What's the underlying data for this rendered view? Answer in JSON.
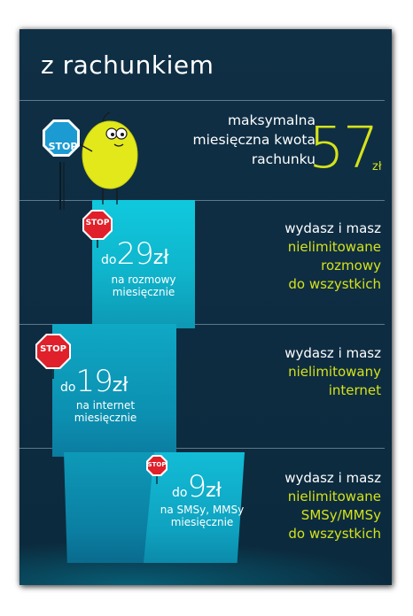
{
  "title": "z rachunkiem",
  "header_section": {
    "label_lines": [
      "maksymalna",
      "miesięczna kwota",
      "rachunku"
    ],
    "amount": "57",
    "currency": "zł",
    "stop_sign_text": "STOP"
  },
  "tiers": [
    {
      "prefix": "do",
      "amount": "29",
      "currency": "zł",
      "caption_lines": [
        "na rozmowy",
        "miesięcznie"
      ],
      "stop_sign_text": "STOP",
      "description_line1": "wydasz i masz",
      "highlight_lines": [
        "nielimitowane",
        "rozmowy",
        "do wszystkich"
      ]
    },
    {
      "prefix": "do",
      "amount": "19",
      "currency": "zł",
      "caption_lines": [
        "na internet",
        "miesięcznie"
      ],
      "stop_sign_text": "STOP",
      "description_line1": "wydasz i masz",
      "highlight_lines": [
        "nielimitowany",
        "internet"
      ]
    },
    {
      "prefix": "do",
      "amount": "9",
      "currency": "zł",
      "caption_lines": [
        "na SMSy, MMSy",
        "miesięcznie"
      ],
      "stop_sign_text": "STOP",
      "description_line1": "wydasz i masz",
      "highlight_lines": [
        "nielimitowane",
        "SMSy/MMSy",
        "do wszystkich"
      ]
    }
  ],
  "colors": {
    "background": "#0f2f45",
    "accent_yellow": "#d5e21a",
    "beam_cyan": "#10c9de",
    "stop_red": "#e0202a",
    "stop_blue": "#1b9bd2"
  }
}
